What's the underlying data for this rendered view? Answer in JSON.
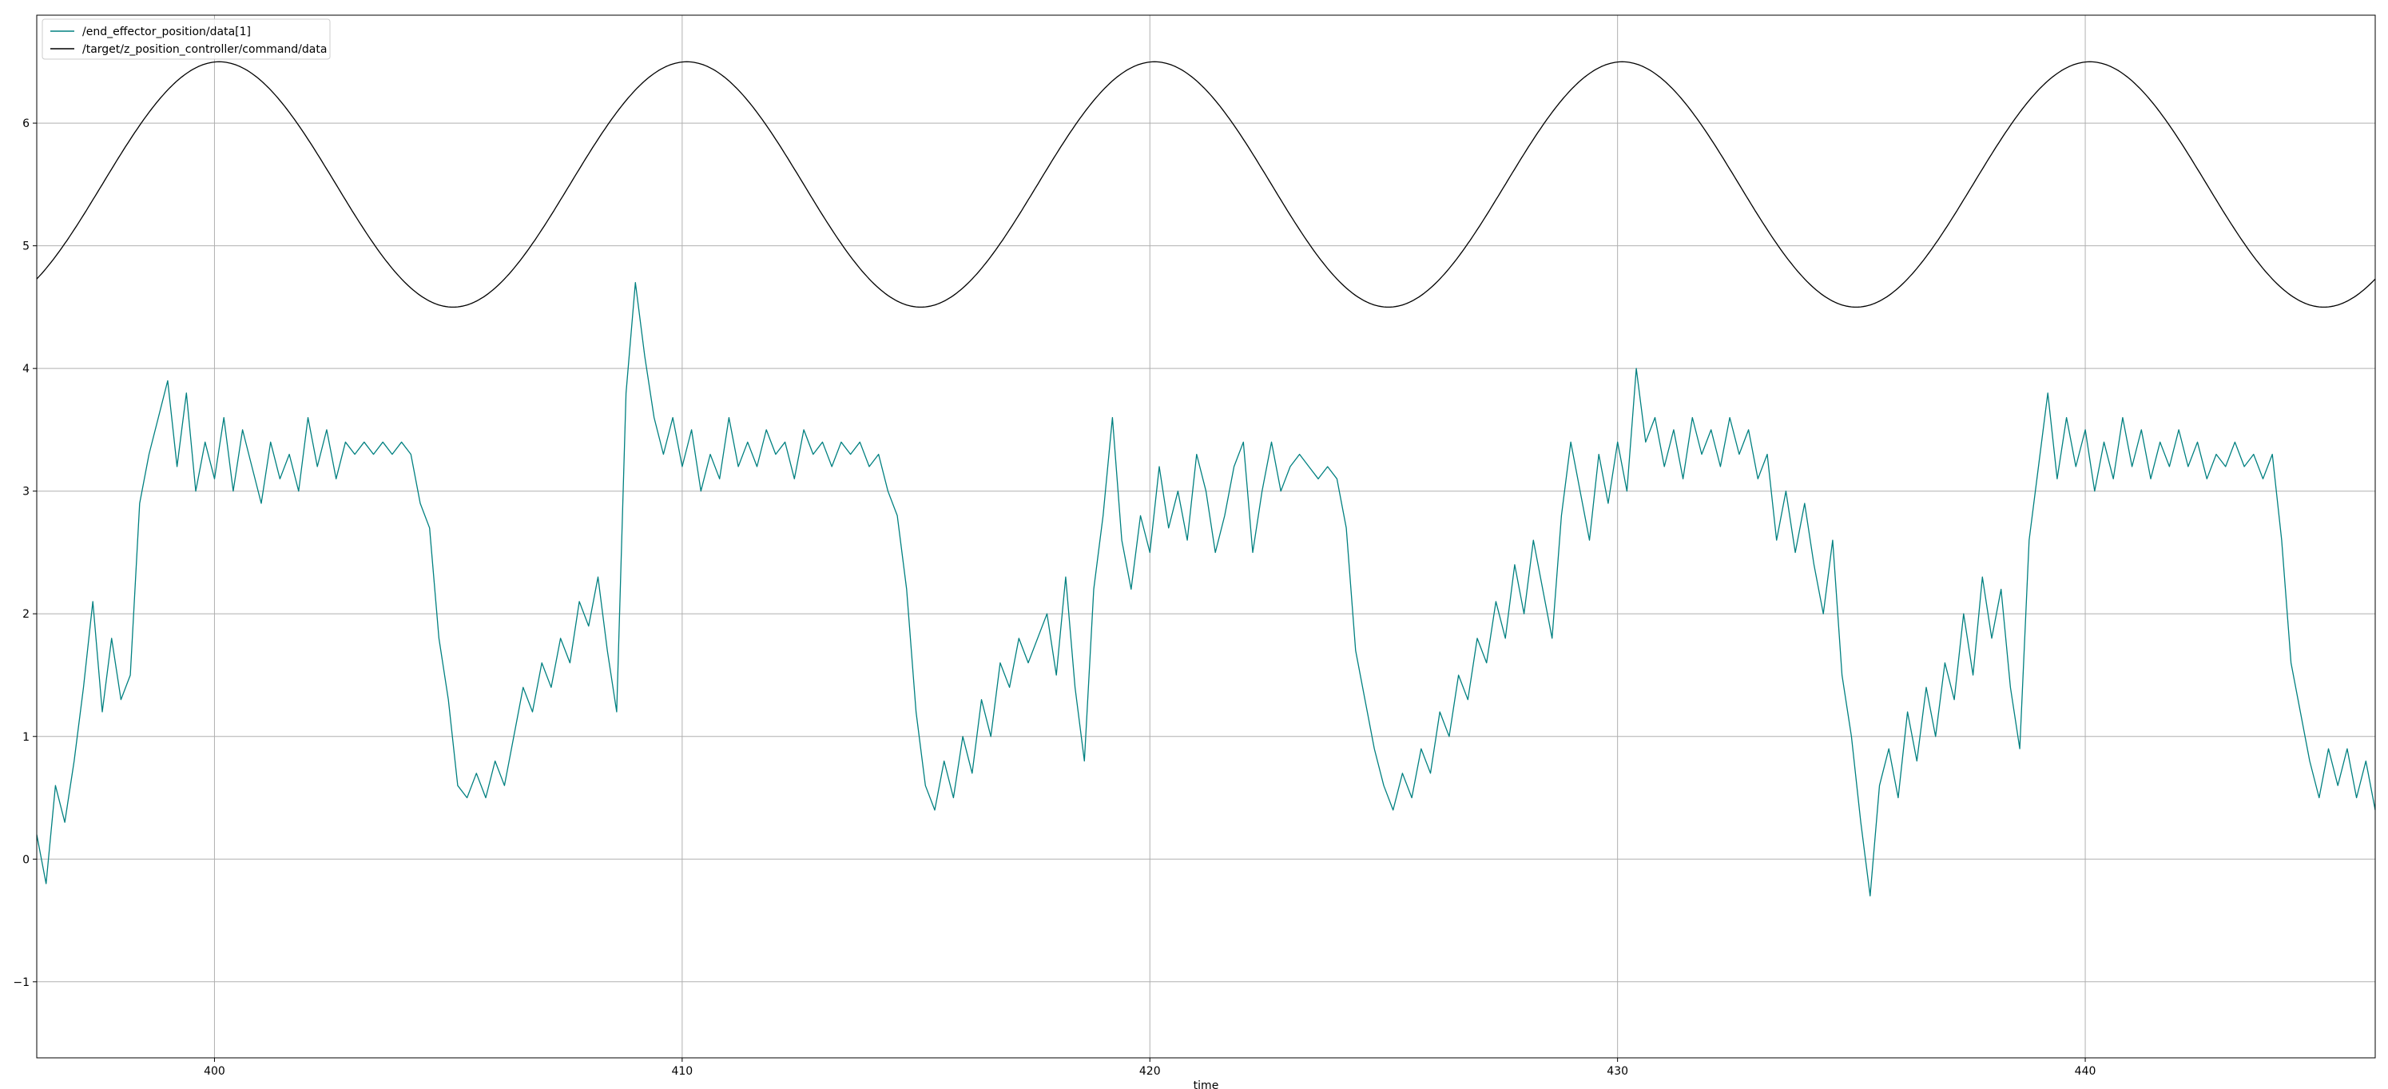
{
  "chart_data": {
    "type": "line",
    "title": "",
    "xlabel": "time",
    "ylabel": "",
    "xlim": [
      396.2,
      446.2
    ],
    "ylim": [
      -1.62,
      6.88
    ],
    "xticks": [
      400,
      410,
      420,
      430,
      440
    ],
    "yticks": [
      -1,
      0,
      1,
      2,
      3,
      4,
      5,
      6
    ],
    "ytick_labels": [
      "−1",
      "0",
      "1",
      "2",
      "3",
      "4",
      "5",
      "6"
    ],
    "grid": true,
    "legend_position": "top-left",
    "series": [
      {
        "name": "/end_effector_position/data[1]",
        "color": "#008080",
        "points": [
          [
            396.2,
            0.2
          ],
          [
            396.4,
            -0.2
          ],
          [
            396.6,
            0.6
          ],
          [
            396.8,
            0.3
          ],
          [
            397.0,
            0.8
          ],
          [
            397.2,
            1.4
          ],
          [
            397.4,
            2.1
          ],
          [
            397.6,
            1.2
          ],
          [
            397.8,
            1.8
          ],
          [
            398.0,
            1.3
          ],
          [
            398.2,
            1.5
          ],
          [
            398.4,
            2.9
          ],
          [
            398.6,
            3.3
          ],
          [
            398.8,
            3.6
          ],
          [
            399.0,
            3.9
          ],
          [
            399.2,
            3.2
          ],
          [
            399.4,
            3.8
          ],
          [
            399.6,
            3.0
          ],
          [
            399.8,
            3.4
          ],
          [
            400.0,
            3.1
          ],
          [
            400.2,
            3.6
          ],
          [
            400.4,
            3.0
          ],
          [
            400.6,
            3.5
          ],
          [
            400.8,
            3.2
          ],
          [
            401.0,
            2.9
          ],
          [
            401.2,
            3.4
          ],
          [
            401.4,
            3.1
          ],
          [
            401.6,
            3.3
          ],
          [
            401.8,
            3.0
          ],
          [
            402.0,
            3.6
          ],
          [
            402.2,
            3.2
          ],
          [
            402.4,
            3.5
          ],
          [
            402.6,
            3.1
          ],
          [
            402.8,
            3.4
          ],
          [
            403.0,
            3.3
          ],
          [
            403.2,
            3.4
          ],
          [
            403.4,
            3.3
          ],
          [
            403.6,
            3.4
          ],
          [
            403.8,
            3.3
          ],
          [
            404.0,
            3.4
          ],
          [
            404.2,
            3.3
          ],
          [
            404.4,
            2.9
          ],
          [
            404.6,
            2.7
          ],
          [
            404.8,
            1.8
          ],
          [
            405.0,
            1.3
          ],
          [
            405.2,
            0.6
          ],
          [
            405.4,
            0.5
          ],
          [
            405.6,
            0.7
          ],
          [
            405.8,
            0.5
          ],
          [
            406.0,
            0.8
          ],
          [
            406.2,
            0.6
          ],
          [
            406.4,
            1.0
          ],
          [
            406.6,
            1.4
          ],
          [
            406.8,
            1.2
          ],
          [
            407.0,
            1.6
          ],
          [
            407.2,
            1.4
          ],
          [
            407.4,
            1.8
          ],
          [
            407.6,
            1.6
          ],
          [
            407.8,
            2.1
          ],
          [
            408.0,
            1.9
          ],
          [
            408.2,
            2.3
          ],
          [
            408.4,
            1.7
          ],
          [
            408.6,
            1.2
          ],
          [
            408.8,
            3.8
          ],
          [
            409.0,
            4.7
          ],
          [
            409.2,
            4.1
          ],
          [
            409.4,
            3.6
          ],
          [
            409.6,
            3.3
          ],
          [
            409.8,
            3.6
          ],
          [
            410.0,
            3.2
          ],
          [
            410.2,
            3.5
          ],
          [
            410.4,
            3.0
          ],
          [
            410.6,
            3.3
          ],
          [
            410.8,
            3.1
          ],
          [
            411.0,
            3.6
          ],
          [
            411.2,
            3.2
          ],
          [
            411.4,
            3.4
          ],
          [
            411.6,
            3.2
          ],
          [
            411.8,
            3.5
          ],
          [
            412.0,
            3.3
          ],
          [
            412.2,
            3.4
          ],
          [
            412.4,
            3.1
          ],
          [
            412.6,
            3.5
          ],
          [
            412.8,
            3.3
          ],
          [
            413.0,
            3.4
          ],
          [
            413.2,
            3.2
          ],
          [
            413.4,
            3.4
          ],
          [
            413.6,
            3.3
          ],
          [
            413.8,
            3.4
          ],
          [
            414.0,
            3.2
          ],
          [
            414.2,
            3.3
          ],
          [
            414.4,
            3.0
          ],
          [
            414.6,
            2.8
          ],
          [
            414.8,
            2.2
          ],
          [
            415.0,
            1.2
          ],
          [
            415.2,
            0.6
          ],
          [
            415.4,
            0.4
          ],
          [
            415.6,
            0.8
          ],
          [
            415.8,
            0.5
          ],
          [
            416.0,
            1.0
          ],
          [
            416.2,
            0.7
          ],
          [
            416.4,
            1.3
          ],
          [
            416.6,
            1.0
          ],
          [
            416.8,
            1.6
          ],
          [
            417.0,
            1.4
          ],
          [
            417.2,
            1.8
          ],
          [
            417.4,
            1.6
          ],
          [
            417.8,
            2.0
          ],
          [
            418.0,
            1.5
          ],
          [
            418.2,
            2.3
          ],
          [
            418.4,
            1.4
          ],
          [
            418.6,
            0.8
          ],
          [
            418.8,
            2.2
          ],
          [
            419.0,
            2.8
          ],
          [
            419.2,
            3.6
          ],
          [
            419.4,
            2.6
          ],
          [
            419.6,
            2.2
          ],
          [
            419.8,
            2.8
          ],
          [
            420.0,
            2.5
          ],
          [
            420.2,
            3.2
          ],
          [
            420.4,
            2.7
          ],
          [
            420.6,
            3.0
          ],
          [
            420.8,
            2.6
          ],
          [
            421.0,
            3.3
          ],
          [
            421.2,
            3.0
          ],
          [
            421.4,
            2.5
          ],
          [
            421.6,
            2.8
          ],
          [
            421.8,
            3.2
          ],
          [
            422.0,
            3.4
          ],
          [
            422.2,
            2.5
          ],
          [
            422.4,
            3.0
          ],
          [
            422.6,
            3.4
          ],
          [
            422.8,
            3.0
          ],
          [
            423.0,
            3.2
          ],
          [
            423.2,
            3.3
          ],
          [
            423.4,
            3.2
          ],
          [
            423.6,
            3.1
          ],
          [
            423.8,
            3.2
          ],
          [
            424.0,
            3.1
          ],
          [
            424.2,
            2.7
          ],
          [
            424.4,
            1.7
          ],
          [
            424.6,
            1.3
          ],
          [
            424.8,
            0.9
          ],
          [
            425.0,
            0.6
          ],
          [
            425.2,
            0.4
          ],
          [
            425.4,
            0.7
          ],
          [
            425.6,
            0.5
          ],
          [
            425.8,
            0.9
          ],
          [
            426.0,
            0.7
          ],
          [
            426.2,
            1.2
          ],
          [
            426.4,
            1.0
          ],
          [
            426.6,
            1.5
          ],
          [
            426.8,
            1.3
          ],
          [
            427.0,
            1.8
          ],
          [
            427.2,
            1.6
          ],
          [
            427.4,
            2.1
          ],
          [
            427.6,
            1.8
          ],
          [
            427.8,
            2.4
          ],
          [
            428.0,
            2.0
          ],
          [
            428.2,
            2.6
          ],
          [
            428.4,
            2.2
          ],
          [
            428.6,
            1.8
          ],
          [
            428.8,
            2.8
          ],
          [
            429.0,
            3.4
          ],
          [
            429.2,
            3.0
          ],
          [
            429.4,
            2.6
          ],
          [
            429.6,
            3.3
          ],
          [
            429.8,
            2.9
          ],
          [
            430.0,
            3.4
          ],
          [
            430.2,
            3.0
          ],
          [
            430.4,
            4.0
          ],
          [
            430.6,
            3.4
          ],
          [
            430.8,
            3.6
          ],
          [
            431.0,
            3.2
          ],
          [
            431.2,
            3.5
          ],
          [
            431.4,
            3.1
          ],
          [
            431.6,
            3.6
          ],
          [
            431.8,
            3.3
          ],
          [
            432.0,
            3.5
          ],
          [
            432.2,
            3.2
          ],
          [
            432.4,
            3.6
          ],
          [
            432.6,
            3.3
          ],
          [
            432.8,
            3.5
          ],
          [
            433.0,
            3.1
          ],
          [
            433.2,
            3.3
          ],
          [
            433.4,
            2.6
          ],
          [
            433.6,
            3.0
          ],
          [
            433.8,
            2.5
          ],
          [
            434.0,
            2.9
          ],
          [
            434.2,
            2.4
          ],
          [
            434.4,
            2.0
          ],
          [
            434.6,
            2.6
          ],
          [
            434.8,
            1.5
          ],
          [
            435.0,
            1.0
          ],
          [
            435.2,
            0.3
          ],
          [
            435.4,
            -0.3
          ],
          [
            435.6,
            0.6
          ],
          [
            435.8,
            0.9
          ],
          [
            436.0,
            0.5
          ],
          [
            436.2,
            1.2
          ],
          [
            436.4,
            0.8
          ],
          [
            436.6,
            1.4
          ],
          [
            436.8,
            1.0
          ],
          [
            437.0,
            1.6
          ],
          [
            437.2,
            1.3
          ],
          [
            437.4,
            2.0
          ],
          [
            437.6,
            1.5
          ],
          [
            437.8,
            2.3
          ],
          [
            438.0,
            1.8
          ],
          [
            438.2,
            2.2
          ],
          [
            438.4,
            1.4
          ],
          [
            438.6,
            0.9
          ],
          [
            438.8,
            2.6
          ],
          [
            439.0,
            3.2
          ],
          [
            439.2,
            3.8
          ],
          [
            439.4,
            3.1
          ],
          [
            439.6,
            3.6
          ],
          [
            439.8,
            3.2
          ],
          [
            440.0,
            3.5
          ],
          [
            440.2,
            3.0
          ],
          [
            440.4,
            3.4
          ],
          [
            440.6,
            3.1
          ],
          [
            440.8,
            3.6
          ],
          [
            441.0,
            3.2
          ],
          [
            441.2,
            3.5
          ],
          [
            441.4,
            3.1
          ],
          [
            441.6,
            3.4
          ],
          [
            441.8,
            3.2
          ],
          [
            442.0,
            3.5
          ],
          [
            442.2,
            3.2
          ],
          [
            442.4,
            3.4
          ],
          [
            442.6,
            3.1
          ],
          [
            442.8,
            3.3
          ],
          [
            443.0,
            3.2
          ],
          [
            443.2,
            3.4
          ],
          [
            443.4,
            3.2
          ],
          [
            443.6,
            3.3
          ],
          [
            443.8,
            3.1
          ],
          [
            444.0,
            3.3
          ],
          [
            444.2,
            2.6
          ],
          [
            444.4,
            1.6
          ],
          [
            444.6,
            1.2
          ],
          [
            444.8,
            0.8
          ],
          [
            445.0,
            0.5
          ],
          [
            445.2,
            0.9
          ],
          [
            445.4,
            0.6
          ],
          [
            445.6,
            0.9
          ],
          [
            445.8,
            0.5
          ],
          [
            446.0,
            0.8
          ],
          [
            446.2,
            0.4
          ]
        ]
      },
      {
        "name": "/target/z_position_controller/command/data",
        "color": "#000000",
        "function": {
          "kind": "cosine",
          "mean": 5.5,
          "amplitude": 1.0,
          "period": 10,
          "peak_at": 400.1
        }
      }
    ]
  }
}
